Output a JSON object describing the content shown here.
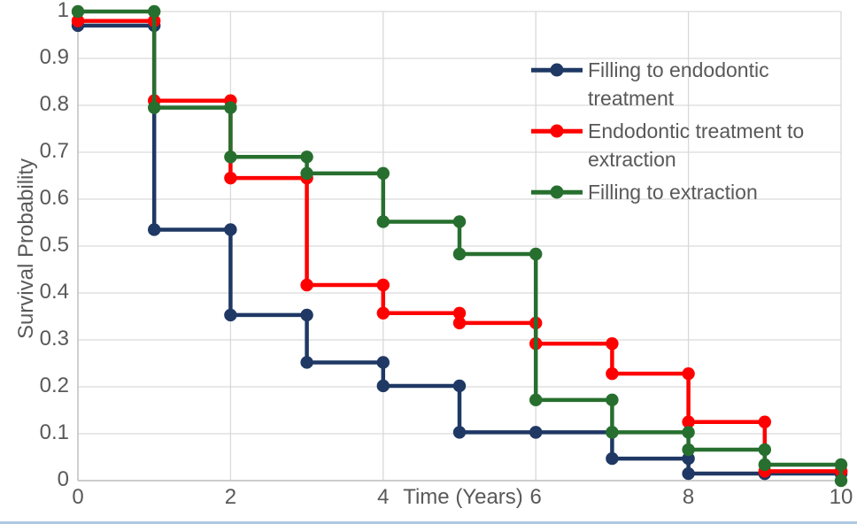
{
  "chart_data": {
    "type": "line",
    "subtype": "kaplan-meier-step",
    "title": "",
    "xlabel": "Time (Years)",
    "ylabel": "Survival Probability",
    "xlim": [
      0,
      10
    ],
    "ylim": [
      0,
      1
    ],
    "grid": true,
    "x_ticks": [
      0,
      2,
      4,
      6,
      8,
      10
    ],
    "x_tick_labels": [
      "0",
      "2",
      "4",
      "6",
      "8",
      "10"
    ],
    "y_ticks": [
      0,
      0.1,
      0.2,
      0.3,
      0.4,
      0.5,
      0.6,
      0.7,
      0.8,
      0.9,
      1
    ],
    "y_tick_labels": [
      "0",
      "0.1",
      "0.2",
      "0.3",
      "0.4",
      "0.5",
      "0.6",
      "0.7",
      "0.8",
      "0.9",
      "1"
    ],
    "x": [
      0,
      1,
      2,
      3,
      4,
      5,
      6,
      7,
      8,
      9,
      10
    ],
    "series": [
      {
        "name": "Filling to endodontic treatment",
        "id": "filling-to-endodontic-treatment",
        "color": "#1F3864",
        "values": [
          0.97,
          0.535,
          0.353,
          0.252,
          0.202,
          0.103,
          0.103,
          0.047,
          0.015,
          0.015,
          0.015
        ]
      },
      {
        "name": "Endodontic treatment to extraction",
        "id": "endodontic-treatment-to-extraction",
        "color": "#FF0000",
        "values": [
          0.98,
          0.81,
          0.645,
          0.417,
          0.357,
          0.336,
          0.292,
          0.228,
          0.125,
          0.02,
          0.02
        ]
      },
      {
        "name": "Filling to extraction",
        "id": "filling-to-extraction",
        "color": "#276F2F",
        "values": [
          1.0,
          0.795,
          0.69,
          0.655,
          0.552,
          0.483,
          0.172,
          0.103,
          0.066,
          0.034,
          0.0
        ]
      }
    ],
    "legend": {
      "position": "inside-top-right",
      "entries": [
        {
          "lines": [
            "Filling to endodontic",
            "treatment"
          ]
        },
        {
          "lines": [
            "Endodontic treatment to",
            "extraction"
          ]
        },
        {
          "lines": [
            "Filling to extraction"
          ]
        }
      ]
    }
  },
  "colors": {
    "text": "#595959",
    "grid": "#D9D9D9",
    "axis": "#BFBFBF",
    "background": "#FFFFFF",
    "bottom_edge": "#AEC9E3"
  }
}
